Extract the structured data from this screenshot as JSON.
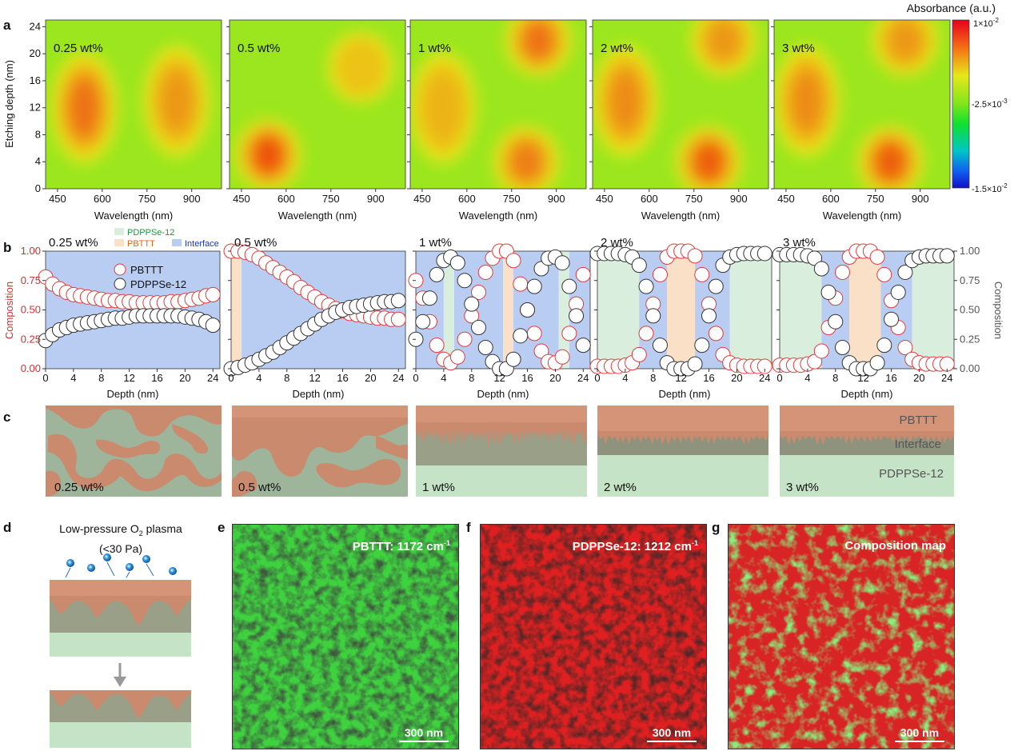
{
  "figure_letters": {
    "a": "a",
    "b": "b",
    "c": "c",
    "d": "d",
    "e": "e",
    "f": "f",
    "g": "g"
  },
  "panel_a": {
    "colorbar": {
      "title": "Absorbance (a.u.)",
      "ticks": [
        {
          "mant": "1×10",
          "exp": "-2"
        },
        {
          "mant": "-2.5×10",
          "exp": "-3"
        },
        {
          "mant": "-1.5×10",
          "exp": "-2"
        }
      ]
    },
    "ylabel": "Etching depth (nm)",
    "xlabel": "Wavelength (nm)",
    "yticks": [
      "0",
      "4",
      "8",
      "12",
      "16",
      "20",
      "24"
    ],
    "xticks": [
      "450",
      "600",
      "750",
      "900"
    ],
    "panels": [
      {
        "label": "0.25 wt%",
        "hot_spots": [
          {
            "wl": 540,
            "depth": 12,
            "intensity": 0.85
          },
          {
            "wl": 850,
            "depth": 13,
            "intensity": 0.7
          }
        ]
      },
      {
        "label": "0.5 wt%",
        "hot_spots": [
          {
            "wl": 540,
            "depth": 5,
            "intensity": 1.0
          },
          {
            "wl": 850,
            "depth": 18,
            "intensity": 0.55
          }
        ]
      },
      {
        "label": "1 wt%",
        "hot_spots": [
          {
            "wl": 520,
            "depth": 12,
            "intensity": 0.6
          },
          {
            "wl": 840,
            "depth": 22,
            "intensity": 0.85
          },
          {
            "wl": 800,
            "depth": 4,
            "intensity": 0.8
          }
        ]
      },
      {
        "label": "2 wt%",
        "hot_spots": [
          {
            "wl": 520,
            "depth": 13,
            "intensity": 0.75
          },
          {
            "wl": 850,
            "depth": 22,
            "intensity": 0.7
          },
          {
            "wl": 800,
            "depth": 4,
            "intensity": 0.95
          }
        ]
      },
      {
        "label": "3 wt%",
        "hot_spots": [
          {
            "wl": 520,
            "depth": 13,
            "intensity": 0.75
          },
          {
            "wl": 850,
            "depth": 22,
            "intensity": 0.7
          },
          {
            "wl": 800,
            "depth": 4,
            "intensity": 0.95
          }
        ]
      }
    ]
  },
  "panel_b": {
    "legend_regions": [
      "PDPPSe-12",
      "PBTTT",
      "Interface"
    ],
    "legend_series": [
      "PBTTT",
      "PDPPSe-12"
    ],
    "ylabel_left": "Composition",
    "ylabel_right": "Composition",
    "xlabel": "Depth (nm)",
    "yticks": [
      "0.00",
      "0.25",
      "0.50",
      "0.75",
      "1.00"
    ],
    "xticks": [
      "0",
      "4",
      "8",
      "12",
      "16",
      "20",
      "24"
    ],
    "titles": [
      "0.25 wt%",
      "0.5 wt%",
      "1 wt%",
      "2 wt%",
      "3 wt%"
    ]
  },
  "chart_data": [
    {
      "type": "scatter",
      "title": "0.25 wt%",
      "xlabel": "Depth (nm)",
      "ylabel": "Composition",
      "xlim": [
        0,
        25
      ],
      "ylim": [
        0,
        1
      ],
      "x": [
        0,
        1,
        2,
        3,
        4,
        5,
        6,
        7,
        8,
        9,
        10,
        11,
        12,
        13,
        14,
        15,
        16,
        17,
        18,
        19,
        20,
        21,
        22,
        23,
        24
      ],
      "regions": [
        {
          "type": "Interface",
          "from": 0,
          "to": 25
        }
      ],
      "series": [
        {
          "name": "PBTTT",
          "values": [
            0.78,
            0.72,
            0.68,
            0.65,
            0.63,
            0.62,
            0.61,
            0.6,
            0.59,
            0.58,
            0.58,
            0.57,
            0.57,
            0.56,
            0.56,
            0.56,
            0.56,
            0.56,
            0.57,
            0.57,
            0.58,
            0.59,
            0.6,
            0.62,
            0.63
          ]
        },
        {
          "name": "PDPPSe-12",
          "values": [
            0.24,
            0.29,
            0.33,
            0.35,
            0.37,
            0.38,
            0.39,
            0.4,
            0.41,
            0.42,
            0.43,
            0.43,
            0.44,
            0.45,
            0.45,
            0.45,
            0.45,
            0.45,
            0.45,
            0.45,
            0.44,
            0.43,
            0.42,
            0.4,
            0.37
          ]
        }
      ]
    },
    {
      "type": "scatter",
      "title": "0.5 wt%",
      "xlabel": "Depth (nm)",
      "ylabel": "Composition",
      "xlim": [
        0,
        25
      ],
      "ylim": [
        0,
        1
      ],
      "x": [
        0,
        1,
        2,
        3,
        4,
        5,
        6,
        7,
        8,
        9,
        10,
        11,
        12,
        13,
        14,
        15,
        16,
        17,
        18,
        19,
        20,
        21,
        22,
        23,
        24
      ],
      "regions": [
        {
          "type": "PBTTT",
          "from": 0,
          "to": 1.5
        },
        {
          "type": "Interface",
          "from": 1.5,
          "to": 25
        }
      ],
      "series": [
        {
          "name": "PBTTT",
          "values": [
            1.0,
            1.0,
            0.99,
            0.97,
            0.94,
            0.9,
            0.86,
            0.82,
            0.78,
            0.74,
            0.69,
            0.65,
            0.61,
            0.57,
            0.54,
            0.51,
            0.49,
            0.47,
            0.46,
            0.45,
            0.44,
            0.43,
            0.43,
            0.42,
            0.42
          ]
        },
        {
          "name": "PDPPSe-12",
          "values": [
            0.0,
            0.01,
            0.03,
            0.05,
            0.08,
            0.11,
            0.14,
            0.18,
            0.22,
            0.26,
            0.3,
            0.34,
            0.38,
            0.42,
            0.45,
            0.48,
            0.5,
            0.52,
            0.53,
            0.54,
            0.55,
            0.56,
            0.57,
            0.57,
            0.58
          ]
        }
      ]
    },
    {
      "type": "scatter",
      "title": "1 wt%",
      "xlabel": "Depth (nm)",
      "ylabel": "Composition",
      "xlim": [
        0,
        25
      ],
      "ylim": [
        0,
        1
      ],
      "x": [
        0,
        1,
        2,
        3,
        4,
        5,
        6,
        7,
        8,
        9,
        10,
        11,
        12,
        13,
        14,
        15,
        16,
        17,
        18,
        19,
        20,
        21,
        22,
        23,
        24
      ],
      "regions": [
        {
          "type": "Interface",
          "from": 0,
          "to": 4
        },
        {
          "type": "PDPPSe-12",
          "from": 4,
          "to": 5.5
        },
        {
          "type": "Interface",
          "from": 5.5,
          "to": 12.5
        },
        {
          "type": "PBTTT",
          "from": 12.5,
          "to": 14
        },
        {
          "type": "Interface",
          "from": 14,
          "to": 20.5
        },
        {
          "type": "PDPPSe-12",
          "from": 20.5,
          "to": 22
        },
        {
          "type": "Interface",
          "from": 22,
          "to": 25
        }
      ],
      "series": [
        {
          "name": "PBTTT",
          "values": [
            0.75,
            0.6,
            0.4,
            0.2,
            0.08,
            0.05,
            0.1,
            0.25,
            0.45,
            0.65,
            0.82,
            0.94,
            1.0,
            1.0,
            0.92,
            0.72,
            0.5,
            0.3,
            0.15,
            0.06,
            0.05,
            0.1,
            0.3,
            0.55,
            0.8
          ]
        },
        {
          "name": "PDPPSe-12",
          "values": [
            0.25,
            0.4,
            0.6,
            0.8,
            0.92,
            0.95,
            0.9,
            0.75,
            0.55,
            0.35,
            0.18,
            0.06,
            0.0,
            0.0,
            0.08,
            0.28,
            0.5,
            0.7,
            0.85,
            0.94,
            0.95,
            0.9,
            0.7,
            0.45,
            0.2
          ]
        }
      ]
    },
    {
      "type": "scatter",
      "title": "2 wt%",
      "xlabel": "Depth (nm)",
      "ylabel": "Composition",
      "xlim": [
        0,
        25
      ],
      "ylim": [
        0,
        1
      ],
      "x": [
        0,
        1,
        2,
        3,
        4,
        5,
        6,
        7,
        8,
        9,
        10,
        11,
        12,
        13,
        14,
        15,
        16,
        17,
        18,
        19,
        20,
        21,
        22,
        23,
        24
      ],
      "regions": [
        {
          "type": "PDPPSe-12",
          "from": 0,
          "to": 6
        },
        {
          "type": "Interface",
          "from": 6,
          "to": 10
        },
        {
          "type": "PBTTT",
          "from": 10,
          "to": 14
        },
        {
          "type": "Interface",
          "from": 14,
          "to": 19
        },
        {
          "type": "PDPPSe-12",
          "from": 19,
          "to": 25
        }
      ],
      "series": [
        {
          "name": "PBTTT",
          "values": [
            0.02,
            0.02,
            0.02,
            0.02,
            0.03,
            0.05,
            0.12,
            0.3,
            0.55,
            0.8,
            0.95,
            1.0,
            1.0,
            1.0,
            0.96,
            0.8,
            0.55,
            0.3,
            0.12,
            0.05,
            0.03,
            0.02,
            0.02,
            0.02,
            0.02
          ]
        },
        {
          "name": "PDPPSe-12",
          "values": [
            0.98,
            0.98,
            0.98,
            0.98,
            0.97,
            0.95,
            0.88,
            0.7,
            0.45,
            0.2,
            0.05,
            0.0,
            0.0,
            0.0,
            0.04,
            0.2,
            0.45,
            0.7,
            0.88,
            0.95,
            0.97,
            0.98,
            0.98,
            0.98,
            0.98
          ]
        }
      ]
    },
    {
      "type": "scatter",
      "title": "3 wt%",
      "xlabel": "Depth (nm)",
      "ylabel": "Composition",
      "xlim": [
        0,
        25
      ],
      "ylim": [
        0,
        1
      ],
      "x": [
        0,
        1,
        2,
        3,
        4,
        5,
        6,
        7,
        8,
        9,
        10,
        11,
        12,
        13,
        14,
        15,
        16,
        17,
        18,
        19,
        20,
        21,
        22,
        23,
        24
      ],
      "regions": [
        {
          "type": "PDPPSe-12",
          "from": 0,
          "to": 6
        },
        {
          "type": "Interface",
          "from": 6,
          "to": 10
        },
        {
          "type": "PBTTT",
          "from": 10,
          "to": 14.5
        },
        {
          "type": "Interface",
          "from": 14.5,
          "to": 19
        },
        {
          "type": "PDPPSe-12",
          "from": 19,
          "to": 25
        }
      ],
      "series": [
        {
          "name": "PBTTT",
          "values": [
            0.03,
            0.03,
            0.03,
            0.03,
            0.04,
            0.06,
            0.15,
            0.35,
            0.6,
            0.82,
            0.95,
            1.0,
            1.0,
            1.0,
            0.95,
            0.8,
            0.58,
            0.35,
            0.18,
            0.08,
            0.05,
            0.04,
            0.04,
            0.04,
            0.04
          ]
        },
        {
          "name": "PDPPSe-12",
          "values": [
            0.97,
            0.97,
            0.97,
            0.97,
            0.96,
            0.94,
            0.85,
            0.65,
            0.4,
            0.18,
            0.05,
            0.0,
            0.0,
            0.0,
            0.05,
            0.2,
            0.42,
            0.65,
            0.82,
            0.92,
            0.95,
            0.96,
            0.96,
            0.96,
            0.96
          ]
        }
      ]
    }
  ],
  "panel_c": {
    "labels": [
      "0.25 wt%",
      "0.5 wt%",
      "1 wt%",
      "2 wt%",
      "3 wt%"
    ],
    "layer_labels": [
      "PBTTT",
      "Interface",
      "PDPPSe-12"
    ]
  },
  "panel_d": {
    "title_line1": "Low-pressure O",
    "title_sub": "2",
    "title_line1_end": " plasma",
    "title_line2": "(<30 Pa)"
  },
  "panel_e": {
    "label": "PBTTT: 1172 cm",
    "sup": "-1",
    "scale": "300 nm"
  },
  "panel_f": {
    "label": "PDPPSe-12: 1212 cm",
    "sup": "-1",
    "scale": "300 nm"
  },
  "panel_g": {
    "label": "Composition map",
    "scale": "300 nm"
  },
  "colors": {
    "pbttt_marker": "#e03a3a",
    "pdppse_marker": "#333333",
    "interface_region": "#b9cdf3",
    "pbttt_region": "#fbe0c8",
    "pdppse_region": "#d9eedc",
    "pbttt_layer": "#d59477",
    "interface_layer": "#9a8f7a",
    "pdppse_layer": "#c5e3c6",
    "bicontinuous_bg": "#9eb59c",
    "green_map": "#38c838",
    "red_map": "#d81c1c"
  }
}
